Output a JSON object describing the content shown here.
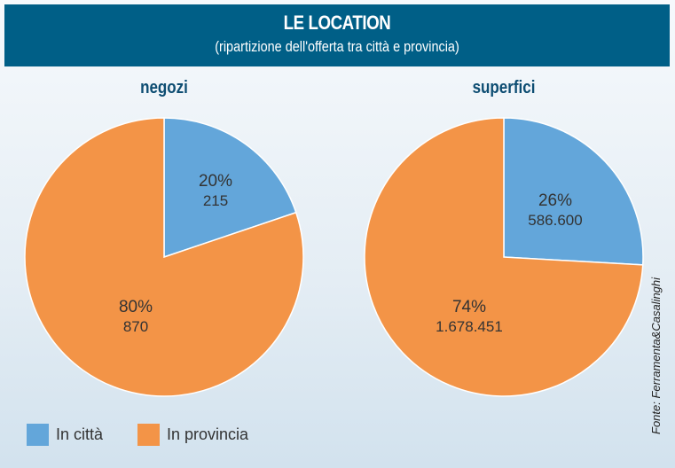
{
  "chart_data": [
    {
      "type": "pie",
      "title": "negozi",
      "categories": [
        "In città",
        "In provincia"
      ],
      "values": [
        215,
        870
      ],
      "percent_labels": [
        "20%",
        "80%"
      ],
      "value_labels": [
        "215",
        "870"
      ]
    },
    {
      "type": "pie",
      "title": "superfici",
      "categories": [
        "In città",
        "In provincia"
      ],
      "values": [
        586600,
        1678451
      ],
      "percent_labels": [
        "26%",
        "74%"
      ],
      "value_labels": [
        "586.600",
        "1.678.451"
      ]
    }
  ],
  "header": {
    "title": "LE LOCATION",
    "subtitle": "(ripartizione dell'offerta tra città e provincia)"
  },
  "legend": [
    {
      "label": "In città",
      "color": "#63a6da"
    },
    {
      "label": "In provincia",
      "color": "#f39447"
    }
  ],
  "source": "Fonte: Ferramenta&Casalinghi"
}
